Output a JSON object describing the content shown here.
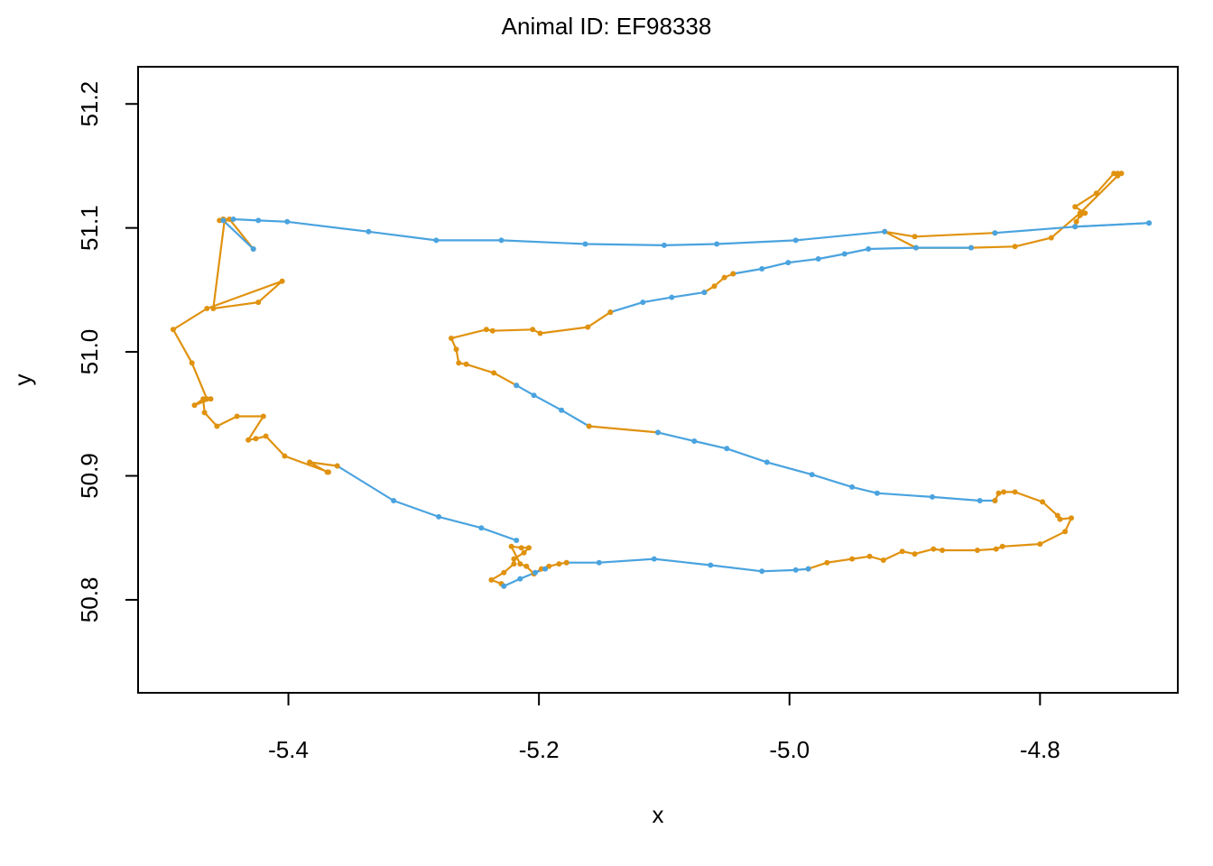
{
  "chart_data": {
    "type": "line",
    "title": "Animal ID: EF98338",
    "xlabel": "x",
    "ylabel": "y",
    "xlim": [
      -5.52,
      -4.69
    ],
    "ylim": [
      50.725,
      51.23
    ],
    "xticks": [
      -5.4,
      -5.2,
      -5.0,
      -4.8
    ],
    "xtick_labels": [
      "-5.4",
      "-5.2",
      "-5.0",
      "-4.8"
    ],
    "yticks": [
      50.8,
      50.9,
      51.0,
      51.1,
      51.2
    ],
    "ytick_labels": [
      "50.8",
      "50.9",
      "51.0",
      "51.1",
      "51.2"
    ],
    "grid": false,
    "colors": {
      "blue": "#4AA3DF",
      "orange": "#E0920F"
    },
    "segments": [
      {
        "color": "blue",
        "points": [
          [
            -4.713,
            51.104
          ],
          [
            -4.772,
            51.101
          ]
        ]
      },
      {
        "color": "orange",
        "points": [
          [
            -4.772,
            51.101
          ],
          [
            -4.771,
            51.105
          ],
          [
            -4.768,
            51.11
          ],
          [
            -4.766,
            51.112
          ],
          [
            -4.764,
            51.112
          ],
          [
            -4.772,
            51.117
          ],
          [
            -4.755,
            51.128
          ],
          [
            -4.741,
            51.144
          ],
          [
            -4.738,
            51.144
          ],
          [
            -4.735,
            51.144
          ],
          [
            -4.738,
            51.142
          ],
          [
            -4.768,
            51.112
          ],
          [
            -4.791,
            51.092
          ],
          [
            -4.82,
            51.085
          ],
          [
            -4.855,
            51.084
          ],
          [
            -4.899,
            51.084
          ],
          [
            -4.924,
            51.097
          ],
          [
            -4.9,
            51.093
          ],
          [
            -4.836,
            51.096
          ]
        ]
      },
      {
        "color": "blue",
        "points": [
          [
            -4.836,
            51.096
          ],
          [
            -4.772,
            51.101
          ],
          [
            -4.713,
            51.104
          ]
        ]
      },
      {
        "color": "blue",
        "points": [
          [
            -4.855,
            51.084
          ],
          [
            -4.899,
            51.084
          ],
          [
            -4.937,
            51.083
          ],
          [
            -4.956,
            51.079
          ],
          [
            -4.977,
            51.075
          ],
          [
            -5.001,
            51.072
          ],
          [
            -5.022,
            51.067
          ],
          [
            -5.045,
            51.063
          ]
        ]
      },
      {
        "color": "orange",
        "points": [
          [
            -5.045,
            51.063
          ],
          [
            -5.052,
            51.06
          ],
          [
            -5.06,
            51.053
          ],
          [
            -5.068,
            51.048
          ]
        ]
      },
      {
        "color": "blue",
        "points": [
          [
            -5.068,
            51.048
          ],
          [
            -5.094,
            51.044
          ],
          [
            -5.117,
            51.04
          ],
          [
            -5.143,
            51.032
          ]
        ]
      },
      {
        "color": "orange",
        "points": [
          [
            -5.143,
            51.032
          ],
          [
            -5.161,
            51.02
          ],
          [
            -5.199,
            51.015
          ],
          [
            -5.205,
            51.018
          ],
          [
            -5.237,
            51.017
          ],
          [
            -5.242,
            51.018
          ],
          [
            -5.27,
            51.011
          ],
          [
            -5.266,
            51.002
          ],
          [
            -5.264,
            50.991
          ],
          [
            -5.258,
            50.99
          ],
          [
            -5.236,
            50.983
          ],
          [
            -5.218,
            50.973
          ]
        ]
      },
      {
        "color": "blue",
        "points": [
          [
            -5.218,
            50.973
          ],
          [
            -5.204,
            50.965
          ],
          [
            -5.182,
            50.953
          ],
          [
            -5.16,
            50.94
          ]
        ]
      },
      {
        "color": "orange",
        "points": [
          [
            -5.16,
            50.94
          ],
          [
            -5.105,
            50.935
          ]
        ]
      },
      {
        "color": "blue",
        "points": [
          [
            -5.105,
            50.935
          ],
          [
            -5.076,
            50.928
          ],
          [
            -5.05,
            50.922
          ],
          [
            -5.018,
            50.911
          ],
          [
            -4.982,
            50.901
          ],
          [
            -4.95,
            50.891
          ],
          [
            -4.93,
            50.886
          ],
          [
            -4.886,
            50.883
          ],
          [
            -4.848,
            50.88
          ],
          [
            -4.836,
            50.88
          ]
        ]
      },
      {
        "color": "orange",
        "points": [
          [
            -4.836,
            50.88
          ],
          [
            -4.833,
            50.886
          ],
          [
            -4.829,
            50.887
          ],
          [
            -4.82,
            50.887
          ],
          [
            -4.798,
            50.879
          ],
          [
            -4.786,
            50.868
          ],
          [
            -4.784,
            50.865
          ],
          [
            -4.775,
            50.866
          ],
          [
            -4.78,
            50.855
          ],
          [
            -4.8,
            50.845
          ],
          [
            -4.83,
            50.843
          ],
          [
            -4.835,
            50.841
          ],
          [
            -4.85,
            50.84
          ],
          [
            -4.878,
            50.84
          ],
          [
            -4.885,
            50.841
          ],
          [
            -4.9,
            50.837
          ],
          [
            -4.91,
            50.839
          ],
          [
            -4.925,
            50.832
          ],
          [
            -4.936,
            50.835
          ],
          [
            -4.95,
            50.833
          ],
          [
            -4.97,
            50.83
          ],
          [
            -4.985,
            50.825
          ]
        ]
      },
      {
        "color": "blue",
        "points": [
          [
            -4.985,
            50.825
          ],
          [
            -4.995,
            50.824
          ],
          [
            -5.022,
            50.823
          ],
          [
            -5.063,
            50.828
          ],
          [
            -5.108,
            50.833
          ],
          [
            -5.152,
            50.83
          ],
          [
            -5.178,
            50.83
          ]
        ]
      },
      {
        "color": "orange",
        "points": [
          [
            -5.178,
            50.83
          ],
          [
            -5.184,
            50.829
          ],
          [
            -5.192,
            50.827
          ],
          [
            -5.198,
            50.825
          ],
          [
            -5.204,
            50.821
          ],
          [
            -5.21,
            50.827
          ],
          [
            -5.215,
            50.829
          ],
          [
            -5.222,
            50.843
          ],
          [
            -5.214,
            50.842
          ],
          [
            -5.208,
            50.842
          ],
          [
            -5.212,
            50.838
          ],
          [
            -5.22,
            50.833
          ],
          [
            -5.22,
            50.829
          ],
          [
            -5.228,
            50.822
          ],
          [
            -5.238,
            50.816
          ],
          [
            -5.23,
            50.813
          ],
          [
            -5.228,
            50.811
          ]
        ]
      },
      {
        "color": "blue",
        "points": [
          [
            -5.228,
            50.811
          ],
          [
            -5.215,
            50.817
          ],
          [
            -5.203,
            50.822
          ],
          [
            -5.195,
            50.825
          ]
        ]
      },
      {
        "color": "blue",
        "points": [
          [
            -5.218,
            50.848
          ],
          [
            -5.246,
            50.858
          ],
          [
            -5.28,
            50.867
          ],
          [
            -5.316,
            50.88
          ],
          [
            -5.361,
            50.908
          ]
        ]
      },
      {
        "color": "orange",
        "points": [
          [
            -5.361,
            50.908
          ],
          [
            -5.383,
            50.911
          ],
          [
            -5.369,
            50.903
          ],
          [
            -5.368,
            50.903
          ],
          [
            -5.403,
            50.916
          ],
          [
            -5.418,
            50.932
          ],
          [
            -5.426,
            50.93
          ],
          [
            -5.432,
            50.929
          ],
          [
            -5.42,
            50.948
          ],
          [
            -5.441,
            50.948
          ],
          [
            -5.457,
            50.94
          ],
          [
            -5.467,
            50.951
          ],
          [
            -5.468,
            50.962
          ],
          [
            -5.475,
            50.957
          ],
          [
            -5.462,
            50.962
          ],
          [
            -5.465,
            50.962
          ],
          [
            -5.477,
            50.991
          ],
          [
            -5.492,
            51.018
          ],
          [
            -5.465,
            51.035
          ],
          [
            -5.405,
            51.057
          ],
          [
            -5.424,
            51.04
          ],
          [
            -5.46,
            51.035
          ],
          [
            -5.451,
            51.106
          ],
          [
            -5.455,
            51.106
          ],
          [
            -5.452,
            51.107
          ],
          [
            -5.447,
            51.107
          ],
          [
            -5.428,
            51.083
          ]
        ]
      },
      {
        "color": "blue",
        "points": [
          [
            -5.428,
            51.083
          ],
          [
            -5.452,
            51.106
          ],
          [
            -5.444,
            51.107
          ],
          [
            -5.424,
            51.106
          ],
          [
            -5.401,
            51.105
          ],
          [
            -5.336,
            51.097
          ],
          [
            -5.282,
            51.09
          ],
          [
            -5.23,
            51.09
          ],
          [
            -5.163,
            51.087
          ],
          [
            -5.1,
            51.086
          ],
          [
            -5.058,
            51.087
          ],
          [
            -4.995,
            51.09
          ],
          [
            -4.924,
            51.097
          ]
        ]
      }
    ]
  }
}
